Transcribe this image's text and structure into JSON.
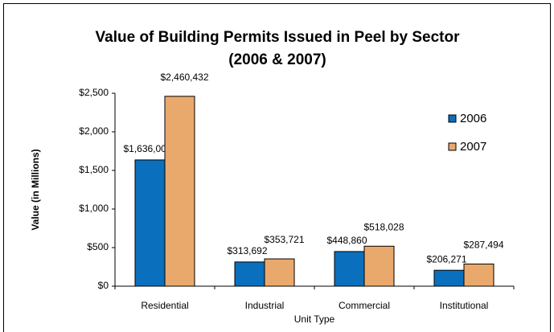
{
  "chart_data": {
    "type": "bar",
    "title": [
      "Value of Building Permits Issued in Peel by Sector",
      "(2006 & 2007)"
    ],
    "y_label": "Value (in Millions)",
    "x_label": "Unit Type",
    "categories": [
      "Residential",
      "Industrial",
      "Commercial",
      "Institutional"
    ],
    "series": [
      {
        "name": "2006",
        "color": "#0a6fbd",
        "values": [
          1636.004,
          313.692,
          448.86,
          206.271
        ],
        "value_labels": [
          "$1,636,004",
          "$313,692",
          "$448,860",
          "$206,271"
        ]
      },
      {
        "name": "2007",
        "color": "#eaa96c",
        "values": [
          2460.432,
          353.721,
          518.028,
          287.494
        ],
        "value_labels": [
          "$2,460,432",
          "$353,721",
          "$518,028",
          "$287,494"
        ]
      }
    ],
    "ylim": [
      0,
      2500
    ],
    "yticks": [
      {
        "value": 0,
        "label": "$0"
      },
      {
        "value": 500,
        "label": "$500"
      },
      {
        "value": 1000,
        "label": "$1,000"
      },
      {
        "value": 1500,
        "label": "$1,500"
      },
      {
        "value": 2000,
        "label": "$2,000"
      },
      {
        "value": 2500,
        "label": "$2,500"
      }
    ],
    "grid": false,
    "legend": "right"
  }
}
